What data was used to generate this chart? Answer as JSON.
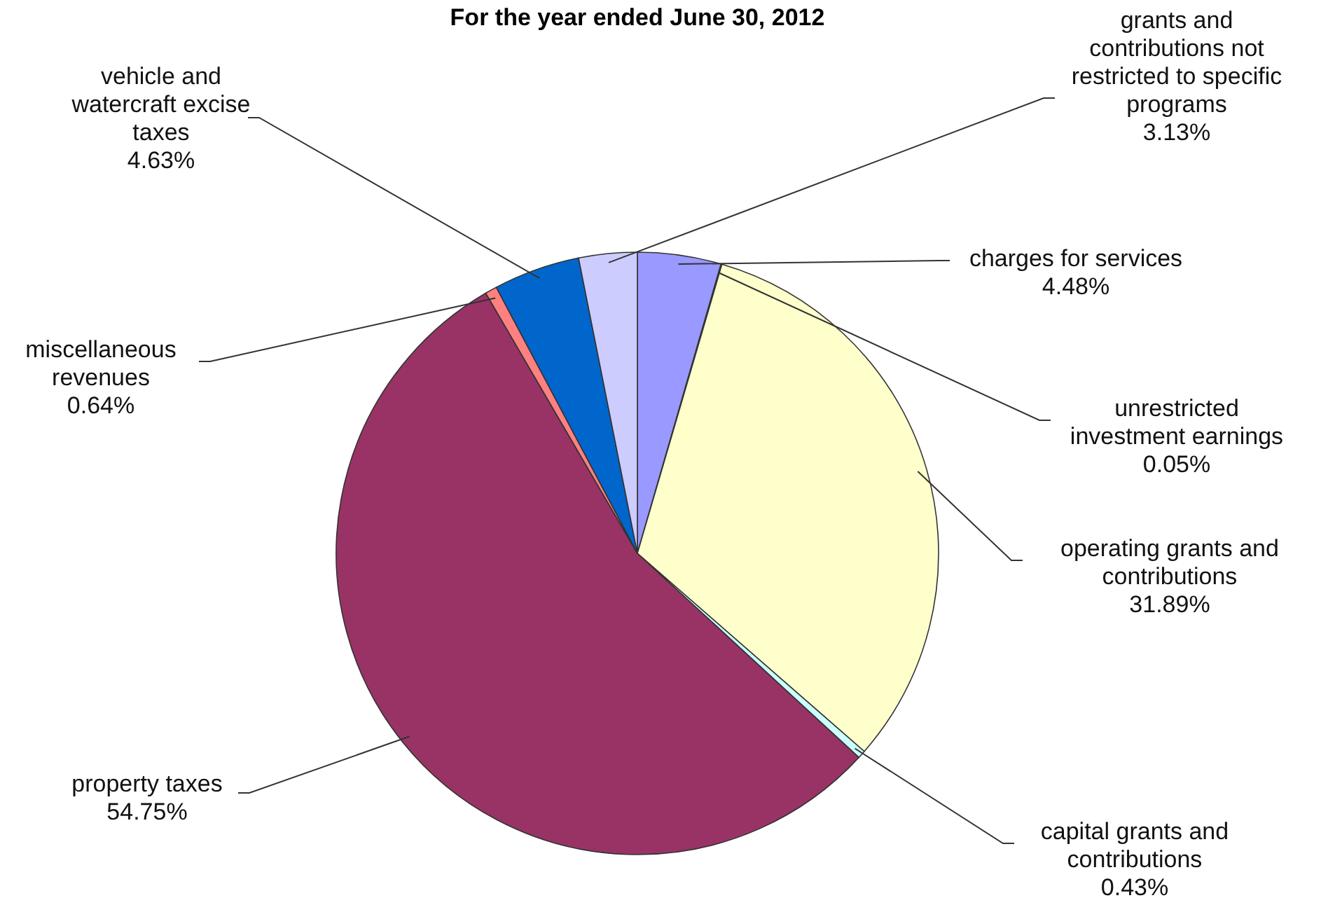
{
  "chart_data": {
    "type": "pie",
    "title": "For the year ended June 30, 2012",
    "categories": [
      "charges for services",
      "unrestricted investment earnings",
      "operating grants and contributions",
      "capital grants and contributions",
      "property taxes",
      "miscellaneous revenues",
      "vehicle and watercraft excise taxes",
      "grants and contributions not restricted to specific programs"
    ],
    "values": [
      4.48,
      0.05,
      31.89,
      0.43,
      54.75,
      0.64,
      4.63,
      3.13
    ],
    "value_labels": [
      "4.48%",
      "0.05%",
      "31.89%",
      "0.43%",
      "54.75%",
      "0.64%",
      "4.63%",
      "3.13%"
    ],
    "colors": [
      "#9999ff",
      "#993366",
      "#ffffcc",
      "#ccffff",
      "#993366",
      "#ff8080",
      "#0066cc",
      "#ccccff"
    ]
  }
}
